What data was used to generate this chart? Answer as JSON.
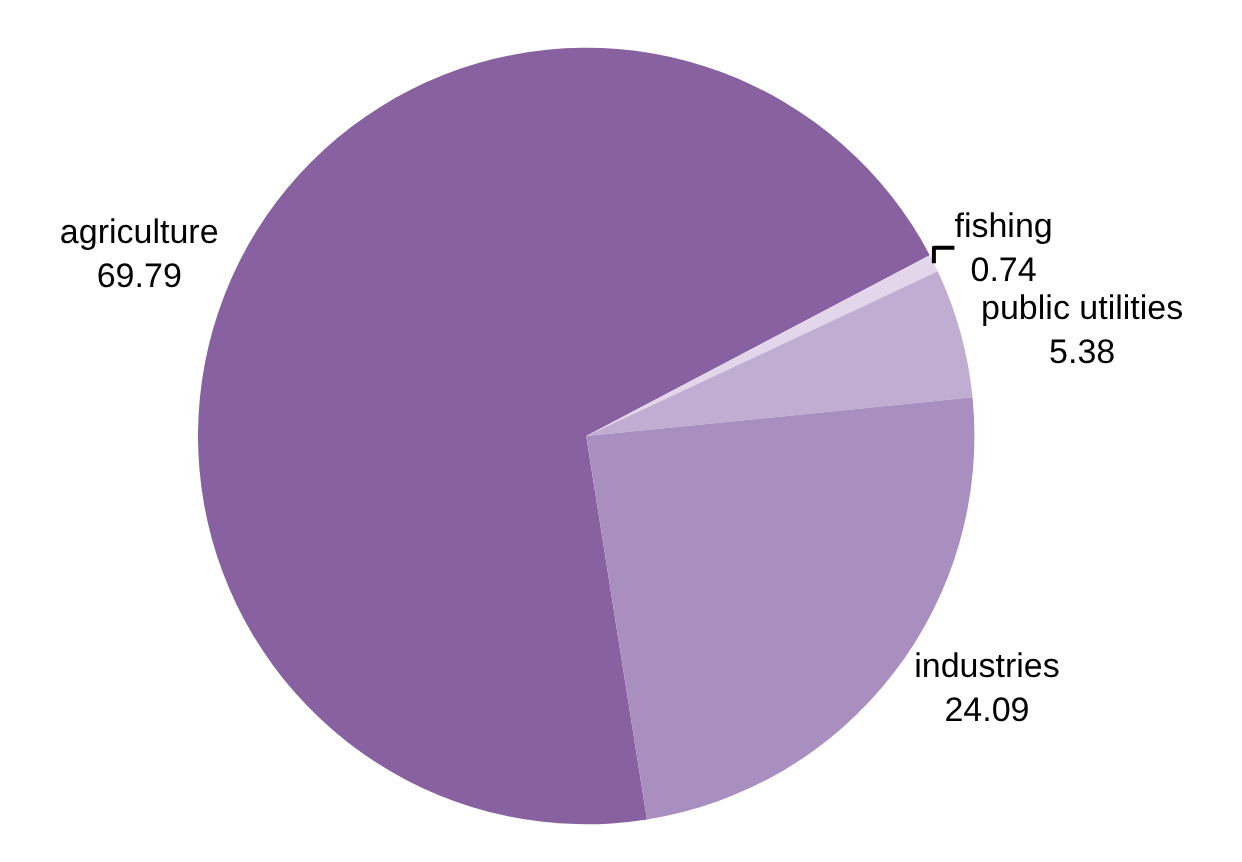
{
  "chart_data": {
    "type": "pie",
    "categories": [
      "agriculture",
      "fishing",
      "public utilities",
      "industries"
    ],
    "values": [
      69.79,
      0.74,
      5.38,
      24.09
    ],
    "colors": [
      "#8861a0",
      "#e3d6ea",
      "#c0aed2",
      "#a98fbf"
    ],
    "data_labels": true
  }
}
